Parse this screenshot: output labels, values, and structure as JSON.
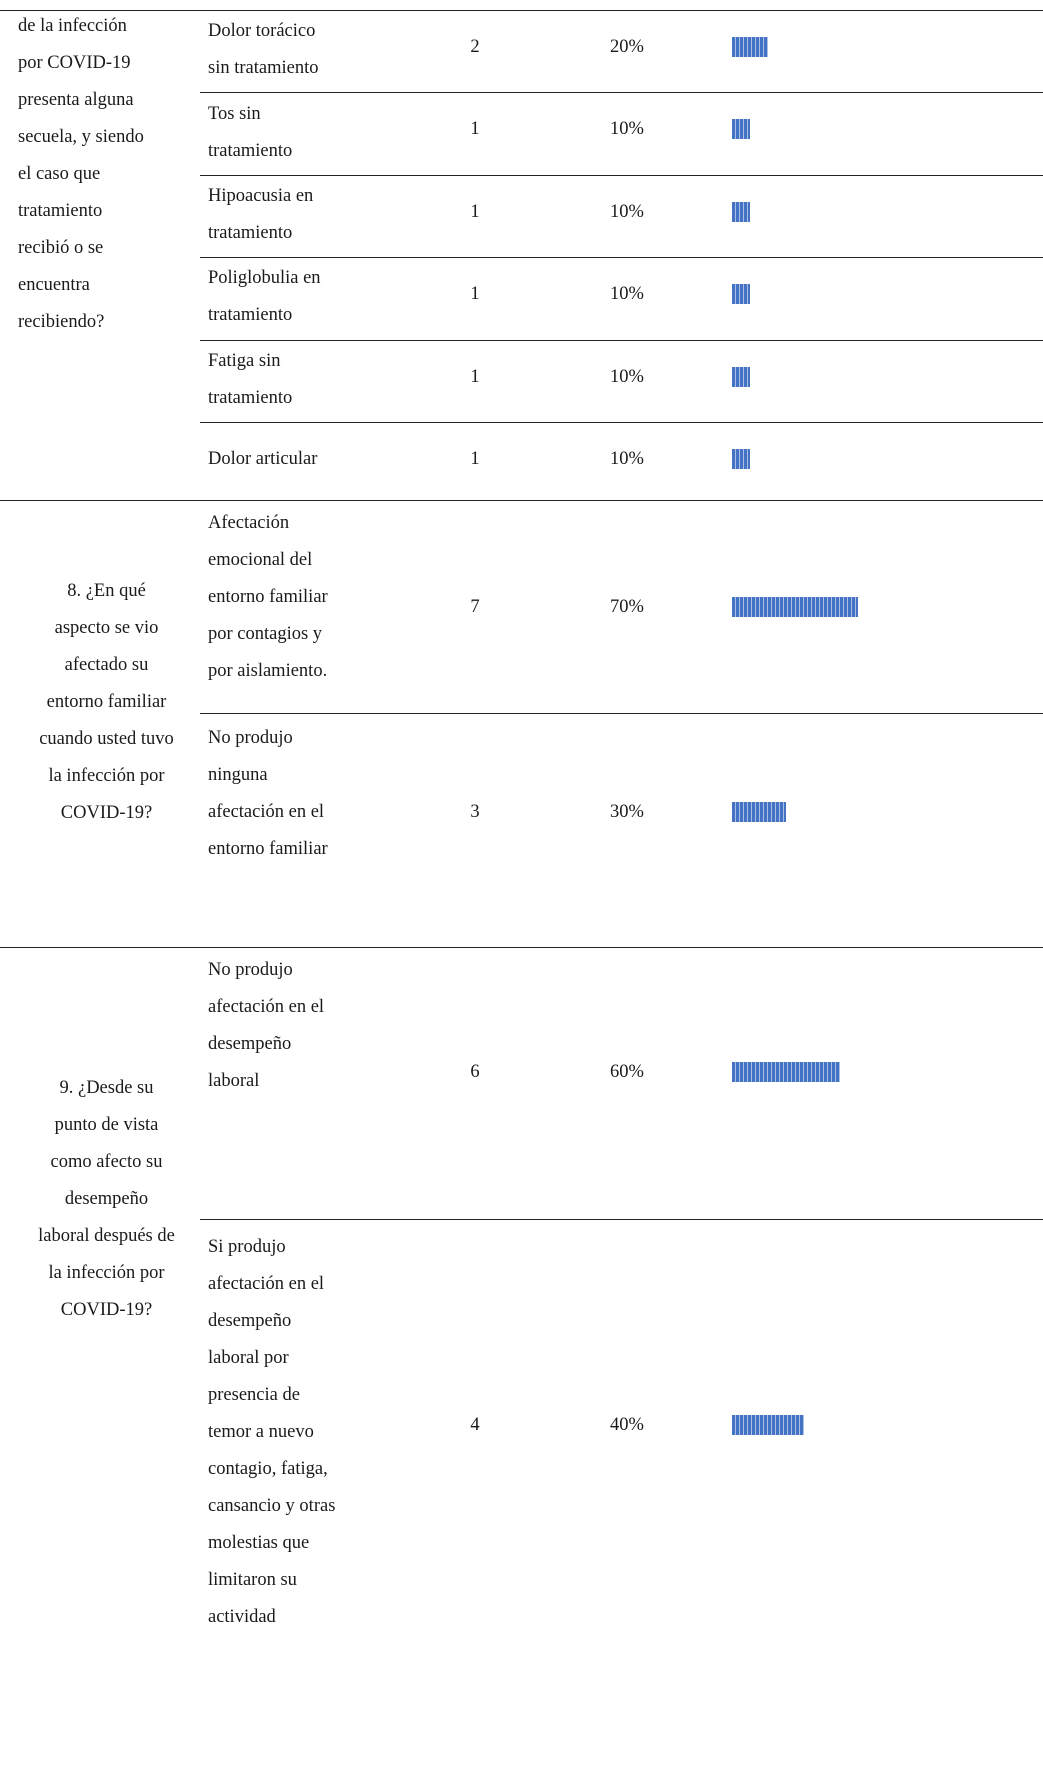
{
  "sections": [
    {
      "question_lines": [
        "de la infección",
        "por COVID-19",
        "presenta alguna",
        "secuela, y siendo",
        "el caso que",
        "tratamiento",
        "recibió o se",
        "encuentra",
        "recibiendo?"
      ],
      "rows": [
        {
          "answer_lines": [
            "Dolor torácico",
            "sin tratamiento"
          ],
          "count": "2",
          "percent": "20%",
          "bar_fraction": 0.2
        },
        {
          "answer_lines": [
            "Tos sin",
            "tratamiento"
          ],
          "count": "1",
          "percent": "10%",
          "bar_fraction": 0.1
        },
        {
          "answer_lines": [
            "Hipoacusia en",
            "tratamiento"
          ],
          "count": "1",
          "percent": "10%",
          "bar_fraction": 0.1
        },
        {
          "answer_lines": [
            "Poliglobulia en",
            "tratamiento"
          ],
          "count": "1",
          "percent": "10%",
          "bar_fraction": 0.1
        },
        {
          "answer_lines": [
            "Fatiga sin",
            "tratamiento"
          ],
          "count": "1",
          "percent": "10%",
          "bar_fraction": 0.1
        },
        {
          "answer_lines": [
            "Dolor articular"
          ],
          "count": "1",
          "percent": "10%",
          "bar_fraction": 0.1
        }
      ]
    },
    {
      "question_lines": [
        "8. ¿En qué",
        "aspecto se vio",
        "afectado su",
        "entorno familiar",
        "cuando usted tuvo",
        "la infección por",
        "COVID-19?"
      ],
      "rows": [
        {
          "answer_lines": [
            "Afectación",
            "emocional del",
            "entorno familiar",
            "por contagios y",
            "por aislamiento."
          ],
          "count": "7",
          "percent": "70%",
          "bar_fraction": 0.7
        },
        {
          "answer_lines": [
            "No produjo",
            "ninguna",
            "afectación en el",
            "entorno familiar"
          ],
          "count": "3",
          "percent": "30%",
          "bar_fraction": 0.3
        }
      ]
    },
    {
      "question_lines": [
        "9. ¿Desde su",
        "punto de vista",
        "como afecto su",
        "desempeño",
        "laboral después de",
        "la infección por",
        "COVID-19?"
      ],
      "rows": [
        {
          "answer_lines": [
            "No produjo",
            "afectación en el",
            "desempeño",
            "laboral"
          ],
          "count": "6",
          "percent": "60%",
          "bar_fraction": 0.6
        },
        {
          "answer_lines": [
            "Si produjo",
            "afectación en el",
            "desempeño",
            "laboral por",
            "presencia de",
            "temor a nuevo",
            "contagio, fatiga,",
            "cansancio y otras",
            "molestias que",
            "limitaron su",
            "actividad"
          ],
          "count": "4",
          "percent": "40%",
          "bar_fraction": 0.4
        }
      ]
    }
  ],
  "colors": {
    "bar": "#4472c4",
    "rule": "#222222"
  }
}
